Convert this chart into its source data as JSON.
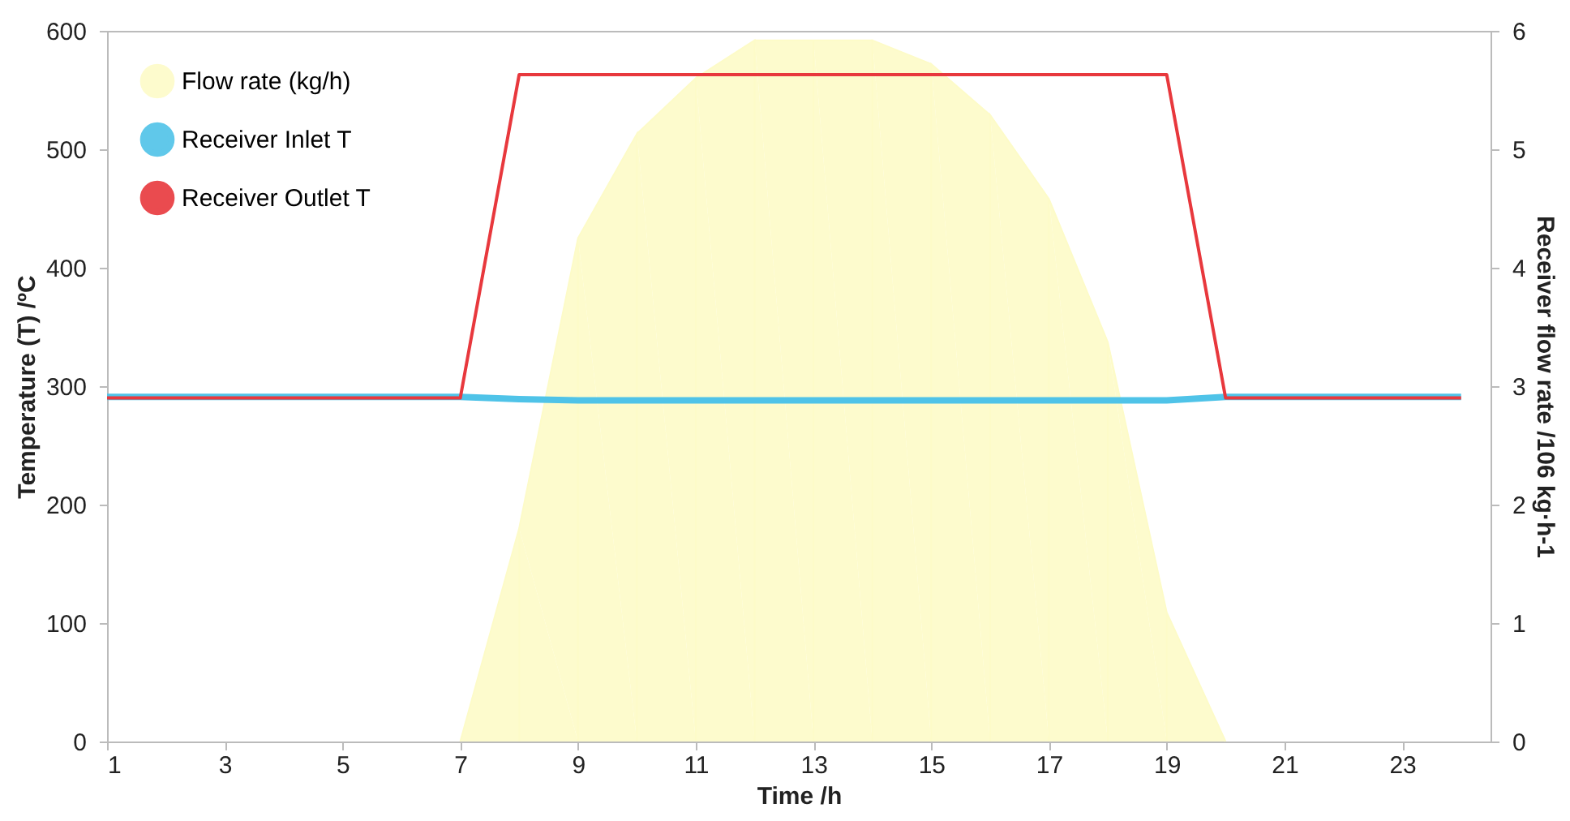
{
  "chart_data": {
    "type": "line",
    "xlabel": "Time /h",
    "ylabel": "Temperature (T) /ºC",
    "y2label": "Receiver flow rate /106 kg·h-1",
    "xlim": [
      1,
      24.5
    ],
    "xticks": [
      1,
      3,
      5,
      7,
      9,
      11,
      13,
      15,
      17,
      19,
      21,
      23
    ],
    "ylim": [
      0,
      600
    ],
    "yticks": [
      0,
      100,
      200,
      300,
      400,
      500,
      600
    ],
    "y2lim": [
      0,
      6
    ],
    "y2ticks": [
      0,
      1,
      2,
      3,
      4,
      5,
      6
    ],
    "grid": false,
    "legend": "top left",
    "series": [
      {
        "name": "Flow rate (kg/h)",
        "type": "area",
        "axis": "y2",
        "color": "#fdfbc8",
        "x": [
          7,
          8,
          9,
          10,
          11,
          12,
          13,
          14,
          15,
          16,
          17,
          18,
          19,
          20
        ],
        "values": [
          0,
          1.8,
          4.25,
          5.13,
          5.6,
          5.92,
          5.92,
          5.92,
          5.72,
          5.29,
          4.58,
          3.37,
          1.09,
          0
        ]
      },
      {
        "name": "Receiver Inlet T",
        "color": "#4fc3e8",
        "x": [
          1,
          2,
          3,
          4,
          5,
          6,
          7,
          8,
          9,
          10,
          11,
          12,
          13,
          14,
          15,
          16,
          17,
          18,
          19,
          20,
          21,
          22,
          23,
          24
        ],
        "values": [
          291,
          291,
          291,
          291,
          291,
          291,
          291,
          289,
          288,
          288,
          288,
          288,
          288,
          288,
          288,
          288,
          288,
          288,
          288,
          291,
          291,
          291,
          291,
          291
        ]
      },
      {
        "name": "Receiver Outlet T",
        "color": "#e8383d",
        "x": [
          1,
          2,
          3,
          4,
          5,
          6,
          7,
          8,
          9,
          10,
          11,
          12,
          13,
          14,
          15,
          16,
          17,
          18,
          19,
          20,
          21,
          22,
          23,
          24
        ],
        "values": [
          290,
          290,
          290,
          290,
          290,
          290,
          290,
          563,
          563,
          563,
          563,
          563,
          563,
          563,
          563,
          563,
          563,
          563,
          563,
          290,
          290,
          290,
          290,
          290
        ]
      }
    ]
  }
}
